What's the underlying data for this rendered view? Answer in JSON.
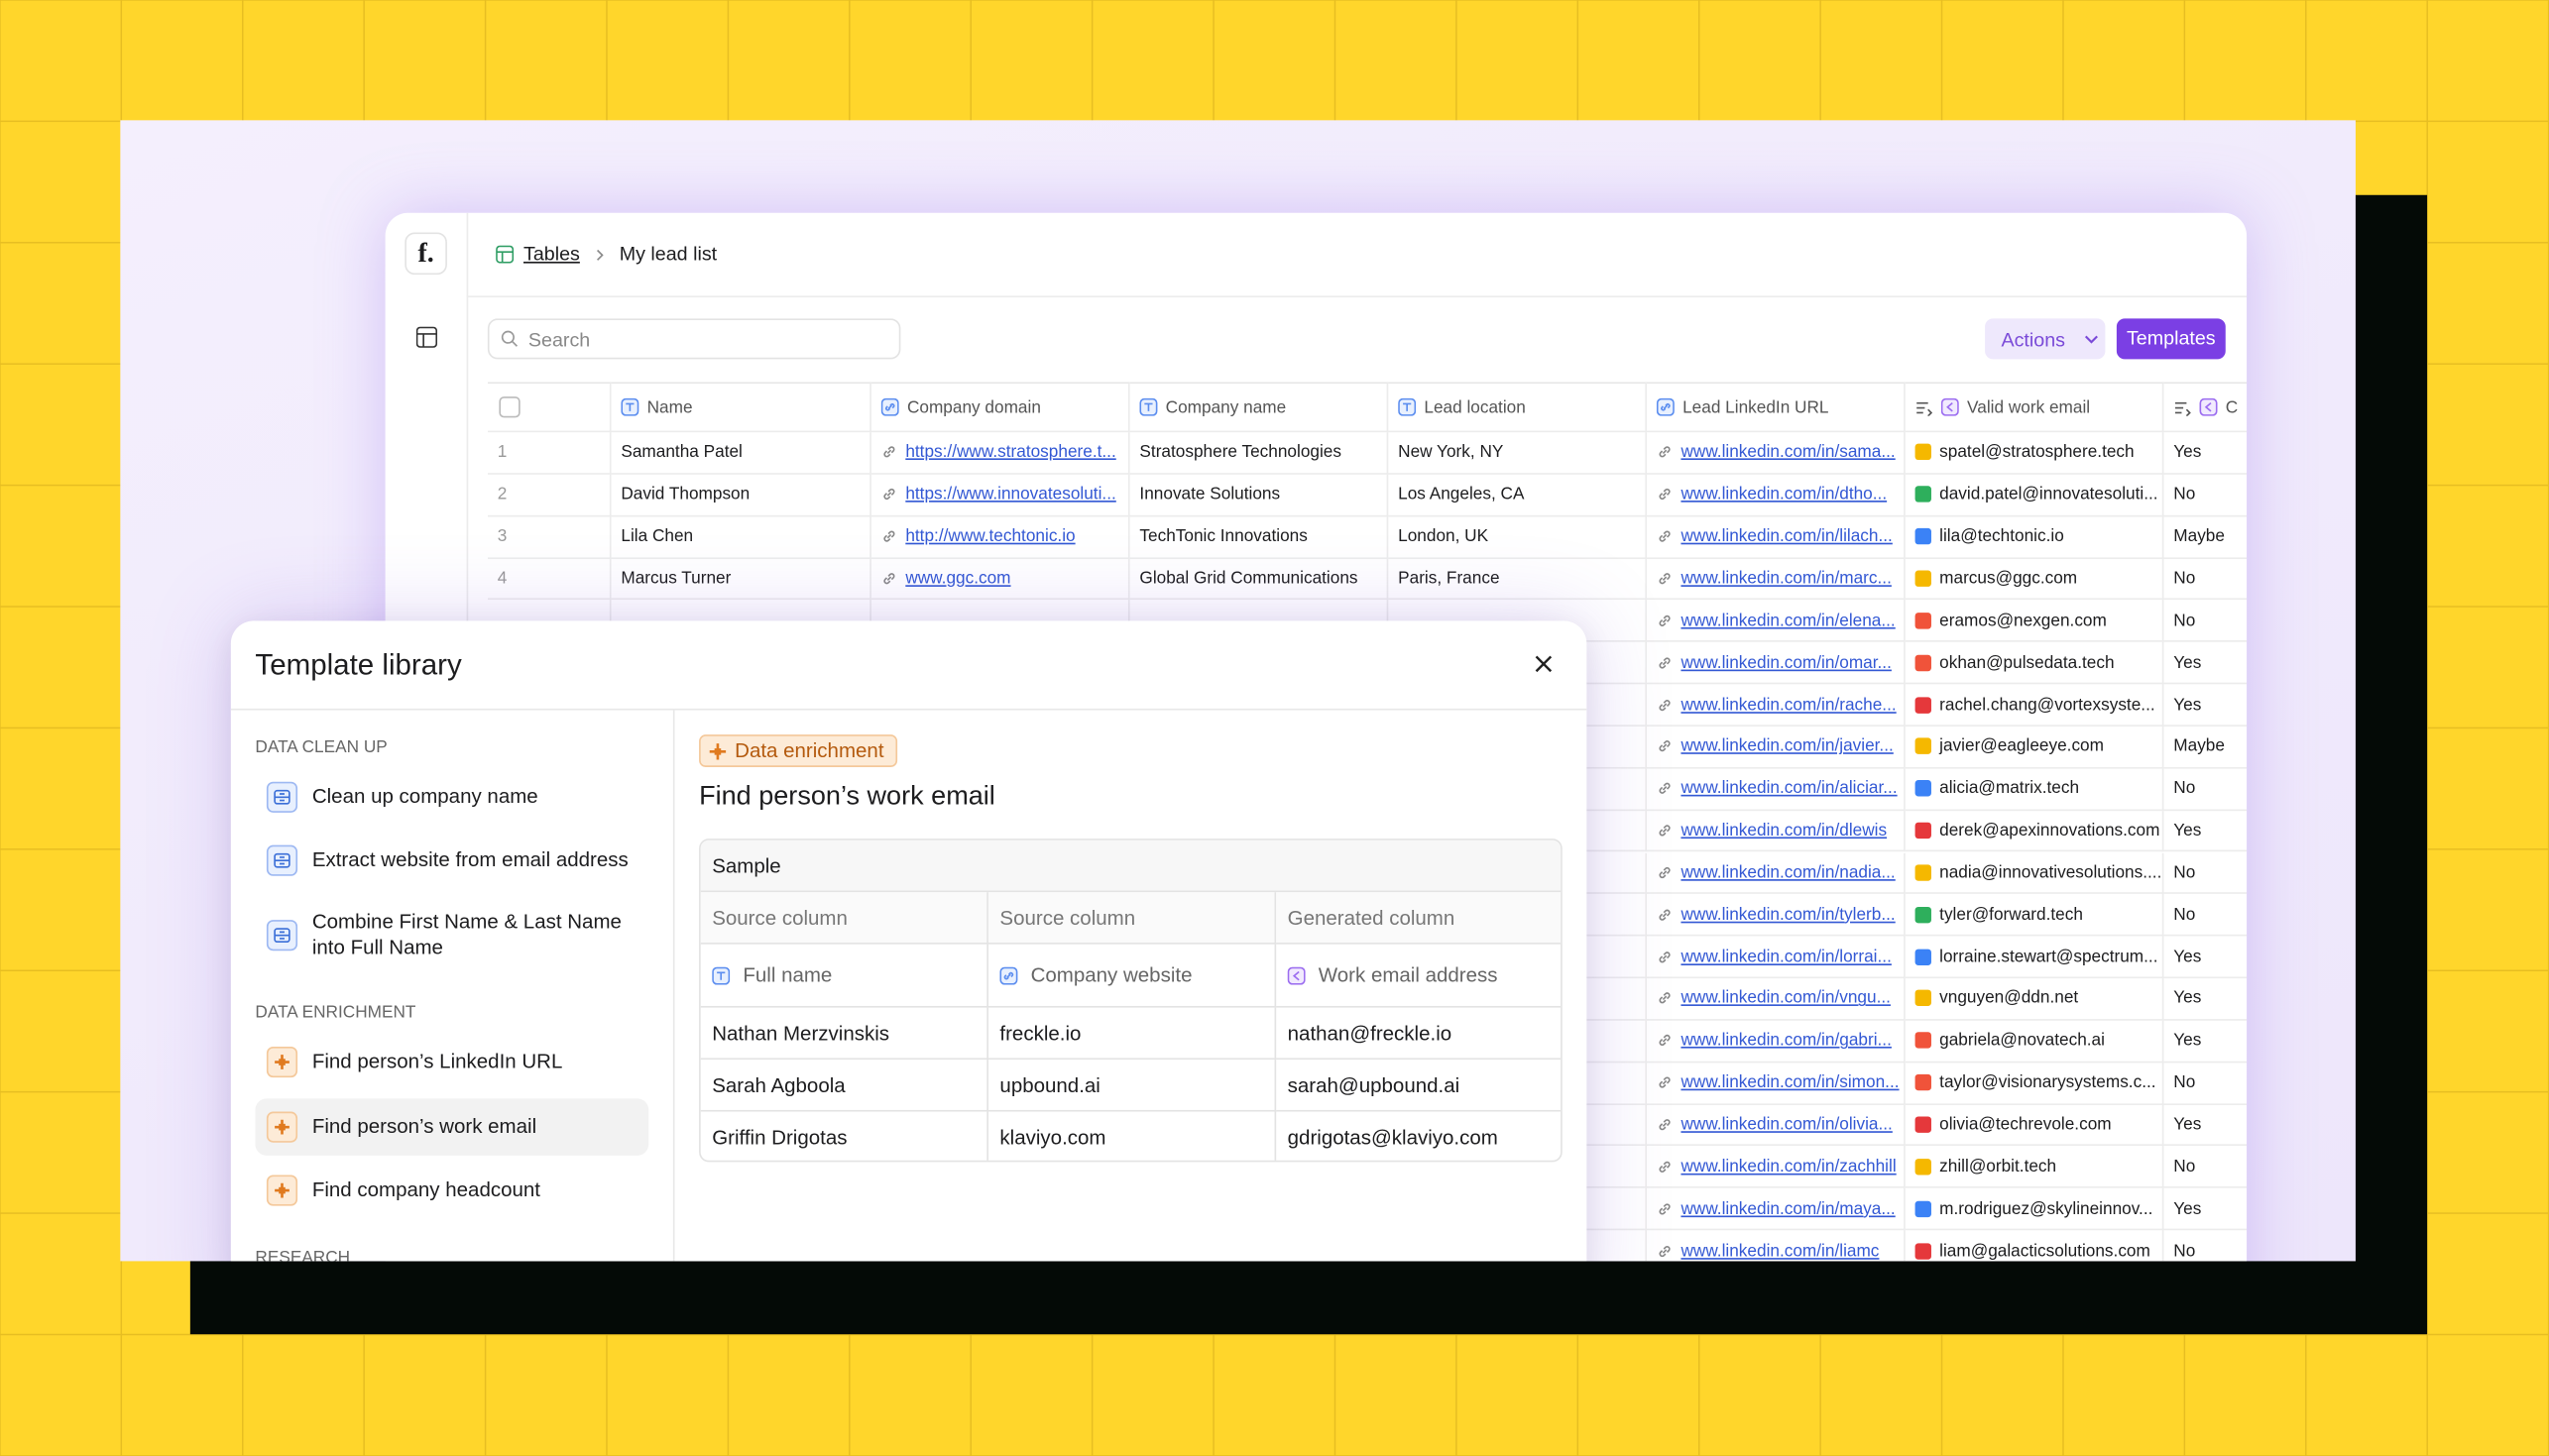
{
  "app": {
    "logo": "f.",
    "breadcrumb": [
      "Tables",
      "My lead list"
    ],
    "search_placeholder": "Search",
    "actions": "Actions",
    "templates": "Templates"
  },
  "table": {
    "columns": [
      "Name",
      "Company domain",
      "Company name",
      "Lead location",
      "Lead LinkedIn URL",
      "Valid work email",
      "C"
    ],
    "rows": [
      {
        "num": 1,
        "name": "Samantha Patel",
        "domain": "https://www.stratosphere.t...",
        "company": "Stratosphere Technologies",
        "location": "New York, NY",
        "linkedin": "www.linkedin.com/in/sama...",
        "email": "spatel@stratosphere.tech",
        "valid": "Yes"
      },
      {
        "num": 2,
        "name": "David Thompson",
        "domain": "https://www.innovatesoluti...",
        "company": "Innovate Solutions",
        "location": "Los Angeles, CA",
        "linkedin": "www.linkedin.com/in/dtho...",
        "email": "david.patel@innovatesoluti...",
        "valid": "No"
      },
      {
        "num": 3,
        "name": "Lila Chen",
        "domain": "http://www.techtonic.io",
        "company": "TechTonic Innovations",
        "location": "London, UK",
        "linkedin": "www.linkedin.com/in/lilach...",
        "email": "lila@techtonic.io",
        "valid": "Maybe"
      },
      {
        "num": 4,
        "name": "Marcus Turner",
        "domain": "www.ggc.com",
        "company": "Global Grid Communications",
        "location": "Paris, France",
        "linkedin": "www.linkedin.com/in/marc...",
        "email": "marcus@ggc.com",
        "valid": "No"
      },
      {
        "linkedin": "www.linkedin.com/in/elena...",
        "email": "eramos@nexgen.com",
        "valid": "No"
      },
      {
        "linkedin": "www.linkedin.com/in/omar...",
        "email": "okhan@pulsedata.tech",
        "valid": "Yes"
      },
      {
        "linkedin": "www.linkedin.com/in/rache...",
        "email": "rachel.chang@vortexsyste...",
        "valid": "Yes"
      },
      {
        "linkedin": "www.linkedin.com/in/javier...",
        "email": "javier@eagleeye.com",
        "valid": "Maybe"
      },
      {
        "linkedin": "www.linkedin.com/in/aliciar...",
        "email": "alicia@matrix.tech",
        "valid": "No"
      },
      {
        "linkedin": "www.linkedin.com/in/dlewis",
        "email": "derek@apexinnovations.com",
        "valid": "Yes"
      },
      {
        "linkedin": "www.linkedin.com/in/nadia...",
        "email": "nadia@innovativesolutions....",
        "valid": "No"
      },
      {
        "linkedin": "www.linkedin.com/in/tylerb...",
        "email": "tyler@forward.tech",
        "valid": "No"
      },
      {
        "linkedin": "www.linkedin.com/in/lorrai...",
        "email": "lorraine.stewart@spectrum...",
        "valid": "Yes"
      },
      {
        "linkedin": "www.linkedin.com/in/vngu...",
        "email": "vnguyen@ddn.net",
        "valid": "Yes"
      },
      {
        "linkedin": "www.linkedin.com/in/gabri...",
        "email": "gabriela@novatech.ai",
        "valid": "Yes"
      },
      {
        "linkedin": "www.linkedin.com/in/simon...",
        "email": "taylor@visionarysystems.c...",
        "valid": "No"
      },
      {
        "linkedin": "www.linkedin.com/in/olivia...",
        "email": "olivia@techrevole.com",
        "valid": "Yes"
      },
      {
        "linkedin": "www.linkedin.com/in/zachhill",
        "email": "zhill@orbit.tech",
        "valid": "No"
      },
      {
        "linkedin": "www.linkedin.com/in/maya...",
        "email": "m.rodriguez@skylineinnov...",
        "valid": "Yes"
      },
      {
        "linkedin": "www.linkedin.com/in/liamc",
        "email": "liam@galacticsolutions.com",
        "valid": "No"
      }
    ]
  },
  "modal": {
    "title": "Template library",
    "sections": [
      {
        "label": "DATA CLEAN UP",
        "items": [
          "Clean up company name",
          "Extract website from email address",
          "Combine First Name & Last Name into Full Name"
        ]
      },
      {
        "label": "DATA ENRICHMENT",
        "items": [
          "Find person’s LinkedIn URL",
          "Find person’s work email",
          "Find company headcount"
        ]
      },
      {
        "label": "RESEARCH"
      }
    ],
    "detail": {
      "badge": "Data enrichment",
      "title": "Find person’s work email",
      "sample": {
        "caption": "Sample",
        "headers": [
          "Source column",
          "Source column",
          "Generated column"
        ],
        "fields": [
          "Full name",
          "Company website",
          "Work email address"
        ],
        "rows": [
          [
            "Nathan Merzvinskis",
            "freckle.io",
            "nathan@freckle.io"
          ],
          [
            "Sarah Agboola",
            "upbound.ai",
            "sarah@upbound.ai"
          ],
          [
            "Griffin Drigotas",
            "klaviyo.com",
            "gdrigotas@klaviyo.com"
          ]
        ]
      }
    }
  }
}
